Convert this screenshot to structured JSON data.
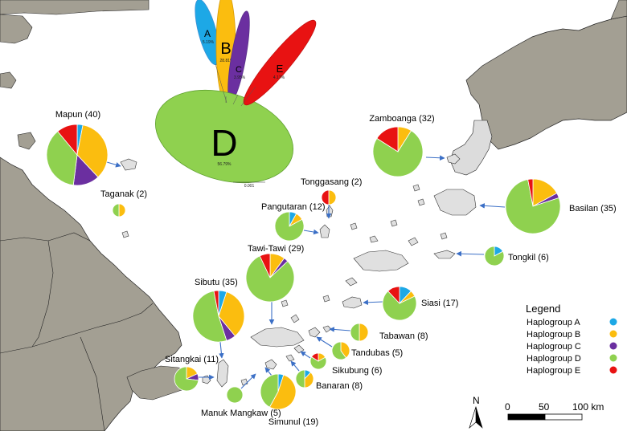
{
  "haplogroups": [
    {
      "key": "A",
      "label": "Haplogroup A",
      "color": "#1da8e6"
    },
    {
      "key": "B",
      "label": "Haplogroup B",
      "color": "#fbbd0f"
    },
    {
      "key": "C",
      "label": "Haplogroup C",
      "color": "#6b2fa0"
    },
    {
      "key": "D",
      "label": "Haplogroup D",
      "color": "#8fd14f"
    },
    {
      "key": "E",
      "label": "Haplogroup E",
      "color": "#e81212"
    }
  ],
  "legend": {
    "title": "Legend"
  },
  "tree": {
    "clades": [
      {
        "key": "A",
        "letter": "A",
        "pct": "5.19%"
      },
      {
        "key": "B",
        "letter": "B",
        "pct": "28.81%"
      },
      {
        "key": "C",
        "letter": "C",
        "pct": "3.95%"
      },
      {
        "key": "D",
        "letter": "D",
        "pct": "56.79%"
      },
      {
        "key": "E",
        "letter": "E",
        "pct": "4.17%"
      }
    ],
    "scale_label": "0.001"
  },
  "locations": [
    {
      "id": "mapun",
      "label": "Mapun (40)",
      "proportions": {
        "A": 0.03,
        "B": 0.35,
        "C": 0.14,
        "D": 0.37,
        "E": 0.11
      }
    },
    {
      "id": "taganak",
      "label": "Taganak (2)",
      "proportions": {
        "B": 0.5,
        "D": 0.5
      }
    },
    {
      "id": "zamboanga",
      "label": "Zamboanga (32)",
      "proportions": {
        "B": 0.09,
        "D": 0.75,
        "E": 0.16
      }
    },
    {
      "id": "tonggasang",
      "label": "Tonggasang (2)",
      "proportions": {
        "B": 0.5,
        "E": 0.5
      }
    },
    {
      "id": "pangutaran",
      "label": "Pangutaran (12)",
      "proportions": {
        "A": 0.08,
        "B": 0.09,
        "D": 0.83
      }
    },
    {
      "id": "basilan",
      "label": "Basilan (35)",
      "proportions": {
        "B": 0.17,
        "C": 0.03,
        "D": 0.77,
        "E": 0.03
      }
    },
    {
      "id": "tawitawi",
      "label": "Tawi-Tawi (29)",
      "proportions": {
        "B": 0.1,
        "C": 0.03,
        "D": 0.8,
        "E": 0.07
      }
    },
    {
      "id": "tongkil",
      "label": "Tongkil (6)",
      "proportions": {
        "A": 0.17,
        "D": 0.83
      }
    },
    {
      "id": "sibutu",
      "label": "Sibutu (35)",
      "proportions": {
        "A": 0.05,
        "B": 0.34,
        "C": 0.06,
        "D": 0.52,
        "E": 0.03
      }
    },
    {
      "id": "siasi",
      "label": "Siasi (17)",
      "proportions": {
        "A": 0.12,
        "B": 0.06,
        "D": 0.7,
        "E": 0.12
      }
    },
    {
      "id": "tabawan",
      "label": "Tabawan (8)",
      "proportions": {
        "B": 0.5,
        "D": 0.5
      }
    },
    {
      "id": "tandubas",
      "label": "Tandubas (5)",
      "proportions": {
        "B": 0.4,
        "D": 0.6
      }
    },
    {
      "id": "sikubung",
      "label": "Sikubung (6)",
      "proportions": {
        "B": 0.17,
        "D": 0.67,
        "E": 0.16
      }
    },
    {
      "id": "sitangkai",
      "label": "Sitangkai (11)",
      "proportions": {
        "B": 0.18,
        "C": 0.09,
        "D": 0.73
      }
    },
    {
      "id": "banaran",
      "label": "Banaran (8)",
      "proportions": {
        "A": 0.12,
        "B": 0.38,
        "D": 0.5
      }
    },
    {
      "id": "simunul",
      "label": "Simunul (19)",
      "proportions": {
        "A": 0.05,
        "B": 0.53,
        "D": 0.42
      }
    },
    {
      "id": "manukmangkaw",
      "label": "Manuk Mangkaw (5)",
      "proportions": {
        "D": 1.0
      }
    }
  ],
  "north_label": "N",
  "scale_bar": {
    "ticks": [
      "0",
      "50",
      "100 km"
    ]
  }
}
